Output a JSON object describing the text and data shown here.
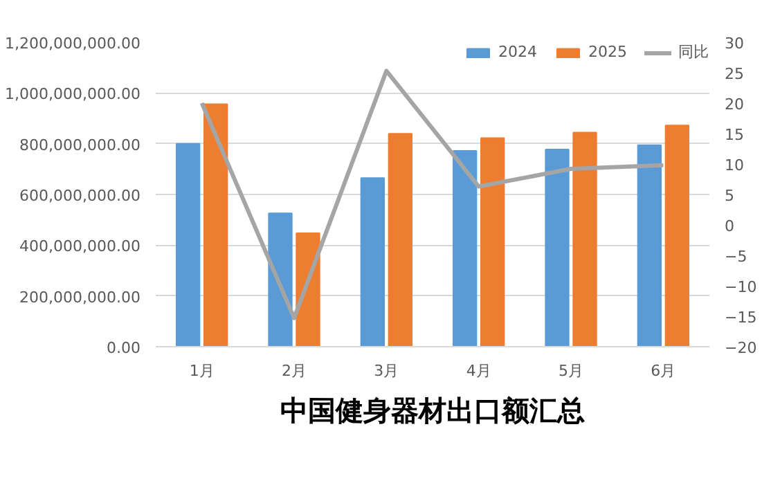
{
  "chart_data": {
    "type": "bar",
    "title": "中国健身器材出口额汇总",
    "categories": [
      "1月",
      "2月",
      "3月",
      "4月",
      "5月",
      "6月"
    ],
    "series": [
      {
        "name": "2024",
        "color": "#5b9bd5",
        "values": [
          800000000,
          526000000,
          665000000,
          772000000,
          777000000,
          794000000
        ]
      },
      {
        "name": "2025",
        "color": "#ed7d31",
        "values": [
          956000000,
          447000000,
          839000000,
          822000000,
          844000000,
          872000000
        ]
      },
      {
        "name": "同比",
        "color": "#a5a5a5",
        "type": "line",
        "axis": "y2",
        "values": [
          20,
          -15.3,
          25.3,
          6.3,
          9.2,
          9.8
        ]
      }
    ],
    "ylim": [
      0,
      1200000000
    ],
    "yticks": [
      {
        "value": 0,
        "label": "0.00"
      },
      {
        "value": 200000000,
        "label": "200,000,000.00"
      },
      {
        "value": 400000000,
        "label": "400,000,000.00"
      },
      {
        "value": 600000000,
        "label": "600,000,000.00"
      },
      {
        "value": 800000000,
        "label": "800,000,000.00"
      },
      {
        "value": 1000000000,
        "label": "1,000,000,000.00"
      },
      {
        "value": 1200000000,
        "label": "1,200,000,000.00"
      }
    ],
    "y2lim": [
      -20,
      30
    ],
    "y2ticks": [
      -20,
      -15,
      -10,
      -5,
      0,
      5,
      10,
      15,
      20,
      25,
      30
    ],
    "grid": "y",
    "legend": "top"
  }
}
